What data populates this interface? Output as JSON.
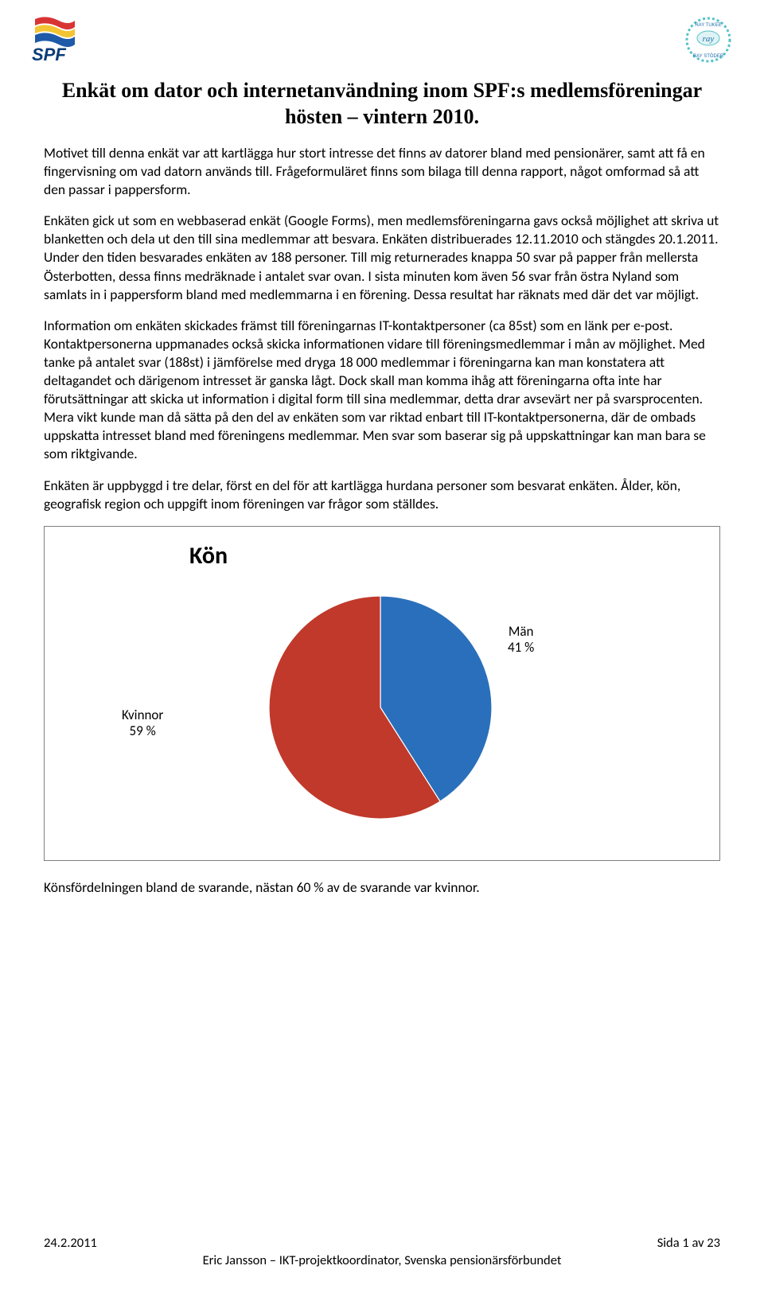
{
  "logo_left": {
    "text": "SPF",
    "colors": {
      "red": "#d93434",
      "yellow": "#f3c433",
      "blue": "#1e5aa8",
      "text": "#0b3c78"
    }
  },
  "logo_right": {
    "top": "RAY TUKEE",
    "bottom": "RAY STÖDER",
    "center": "ray",
    "ring": "#54c1c7",
    "accent": "#1f6fad"
  },
  "title": "Enkät om dator och internetanvändning inom SPF:s medlemsföreningar hösten – vintern 2010.",
  "paragraphs": [
    "Motivet till denna enkät var att kartlägga hur stort intresse det finns av datorer bland med pensionärer, samt att få en fingervisning om vad datorn används till. Frågeformuläret finns som bilaga till denna rapport, något omformad så att den passar i pappersform.",
    "Enkäten gick ut som en webbaserad enkät (Google Forms), men medlemsföreningarna gavs också möjlighet att skriva ut blanketten och dela ut den till sina medlemmar att besvara. Enkäten distribuerades 12.11.2010 och stängdes 20.1.2011. Under den tiden besvarades enkäten av 188 personer. Till mig returnerades knappa 50 svar på papper från mellersta Österbotten, dessa finns medräknade i antalet svar ovan. I sista minuten kom även 56 svar från östra Nyland som samlats in i pappersform bland med medlemmarna i en förening. Dessa resultat har räknats med där det var möjligt.",
    "Information om enkäten skickades främst till föreningarnas IT-kontaktpersoner (ca 85st) som en länk per e-post. Kontaktpersonerna uppmanades också skicka informationen vidare till föreningsmedlemmar i mån av möjlighet. Med tanke på antalet svar (188st) i jämförelse med dryga 18 000 medlemmar i föreningarna kan man konstatera att deltagandet och därigenom intresset är ganska lågt. Dock skall man komma ihåg att föreningarna ofta inte har förutsättningar att skicka ut information i digital form till sina medlemmar, detta drar avsevärt ner på svarsprocenten. Mera vikt kunde man då sätta på den del av enkäten som var riktad enbart till IT-kontaktpersonerna, där de ombads uppskatta intresset bland med föreningens medlemmar. Men svar som baserar sig på uppskattningar kan man bara se som riktgivande.",
    "Enkäten är uppbyggd i tre delar, först en del för att kartlägga hurdana personer som besvarat enkäten. Ålder, kön, geografisk region och uppgift inom föreningen var frågor som ställdes."
  ],
  "chart": {
    "type": "pie",
    "title": "Kön",
    "slices": [
      {
        "label": "Kvinnor",
        "value": 59,
        "text": "Kvinnor\n59 %",
        "color": "#c0392b"
      },
      {
        "label": "Män",
        "value": 41,
        "text": "Män\n41 %",
        "color": "#2a6fbb"
      }
    ],
    "border_color": "#7f7f7f",
    "title_fontsize": 30,
    "label_fontsize": 17,
    "radius": 140,
    "start_angle_deg": -90,
    "background": "#ffffff"
  },
  "caption": "Könsfördelningen bland de svarande, nästan 60 % av de svarande var kvinnor.",
  "footer": {
    "date": "24.2.2011",
    "page": "Sida 1 av 23",
    "author": "Eric Jansson – IKT-projektkoordinator, Svenska pensionärsförbundet"
  }
}
